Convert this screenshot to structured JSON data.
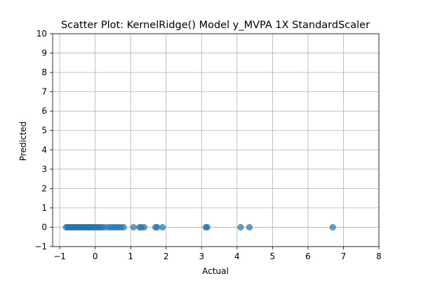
{
  "chart_data": {
    "type": "scatter",
    "title": "Scatter Plot: KernelRidge() Model y_MVPA 1X StandardScaler",
    "xlabel": "Actual",
    "ylabel": "Predicted",
    "xlim": [
      -1.2,
      8.0
    ],
    "ylim": [
      -1,
      10
    ],
    "xticks": [
      -1,
      0,
      1,
      2,
      3,
      4,
      5,
      6,
      7,
      8
    ],
    "yticks": [
      -1,
      0,
      1,
      2,
      3,
      4,
      5,
      6,
      7,
      8,
      9,
      10
    ],
    "grid": true,
    "series": [
      {
        "color": "#1f77b4",
        "x": [
          -0.82,
          -0.78,
          -0.74,
          -0.7,
          -0.66,
          -0.62,
          -0.58,
          -0.54,
          -0.5,
          -0.46,
          -0.42,
          -0.38,
          -0.34,
          -0.3,
          -0.26,
          -0.22,
          -0.18,
          -0.14,
          -0.1,
          -0.05,
          0.0,
          0.05,
          0.1,
          0.15,
          0.2,
          0.28,
          0.38,
          0.45,
          0.52,
          0.58,
          0.65,
          0.72,
          0.8,
          1.08,
          1.25,
          1.3,
          1.38,
          1.7,
          1.75,
          1.9,
          3.12,
          3.16,
          4.1,
          4.35,
          6.7
        ],
        "y": [
          0,
          0,
          0,
          0,
          0,
          0,
          0,
          0,
          0,
          0,
          0,
          0,
          0,
          0,
          0,
          0,
          0,
          0,
          0,
          0,
          0,
          0,
          0,
          0,
          0,
          0,
          0,
          0,
          0,
          0,
          0,
          0,
          0,
          0,
          0,
          0,
          0,
          0,
          0,
          0,
          0,
          0,
          0,
          0,
          0
        ]
      }
    ]
  }
}
